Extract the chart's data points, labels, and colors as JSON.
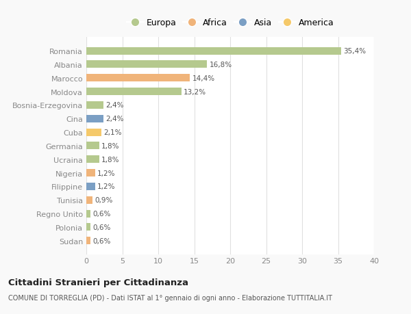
{
  "categories": [
    "Romania",
    "Albania",
    "Marocco",
    "Moldova",
    "Bosnia-Erzegovina",
    "Cina",
    "Cuba",
    "Germania",
    "Ucraina",
    "Nigeria",
    "Filippine",
    "Tunisia",
    "Regno Unito",
    "Polonia",
    "Sudan"
  ],
  "values": [
    35.4,
    16.8,
    14.4,
    13.2,
    2.4,
    2.4,
    2.1,
    1.8,
    1.8,
    1.2,
    1.2,
    0.9,
    0.6,
    0.6,
    0.6
  ],
  "labels": [
    "35,4%",
    "16,8%",
    "14,4%",
    "13,2%",
    "2,4%",
    "2,4%",
    "2,1%",
    "1,8%",
    "1,8%",
    "1,2%",
    "1,2%",
    "0,9%",
    "0,6%",
    "0,6%",
    "0,6%"
  ],
  "colors": [
    "#b5c98e",
    "#b5c98e",
    "#f0b47a",
    "#b5c98e",
    "#b5c98e",
    "#7b9fc4",
    "#f5c96a",
    "#b5c98e",
    "#b5c98e",
    "#f0b47a",
    "#7b9fc4",
    "#f0b47a",
    "#b5c98e",
    "#b5c98e",
    "#f0b47a"
  ],
  "legend_labels": [
    "Europa",
    "Africa",
    "Asia",
    "America"
  ],
  "legend_colors": [
    "#b5c98e",
    "#f0b47a",
    "#7b9fc4",
    "#f5c96a"
  ],
  "xlim": [
    0,
    40
  ],
  "xticks": [
    0,
    5,
    10,
    15,
    20,
    25,
    30,
    35,
    40
  ],
  "title": "Cittadini Stranieri per Cittadinanza",
  "subtitle": "COMUNE DI TORREGLIA (PD) - Dati ISTAT al 1° gennaio di ogni anno - Elaborazione TUTTITALIA.IT",
  "bg_color": "#f9f9f9",
  "plot_bg_color": "#ffffff",
  "grid_color": "#e0e0e0",
  "bar_height": 0.55
}
